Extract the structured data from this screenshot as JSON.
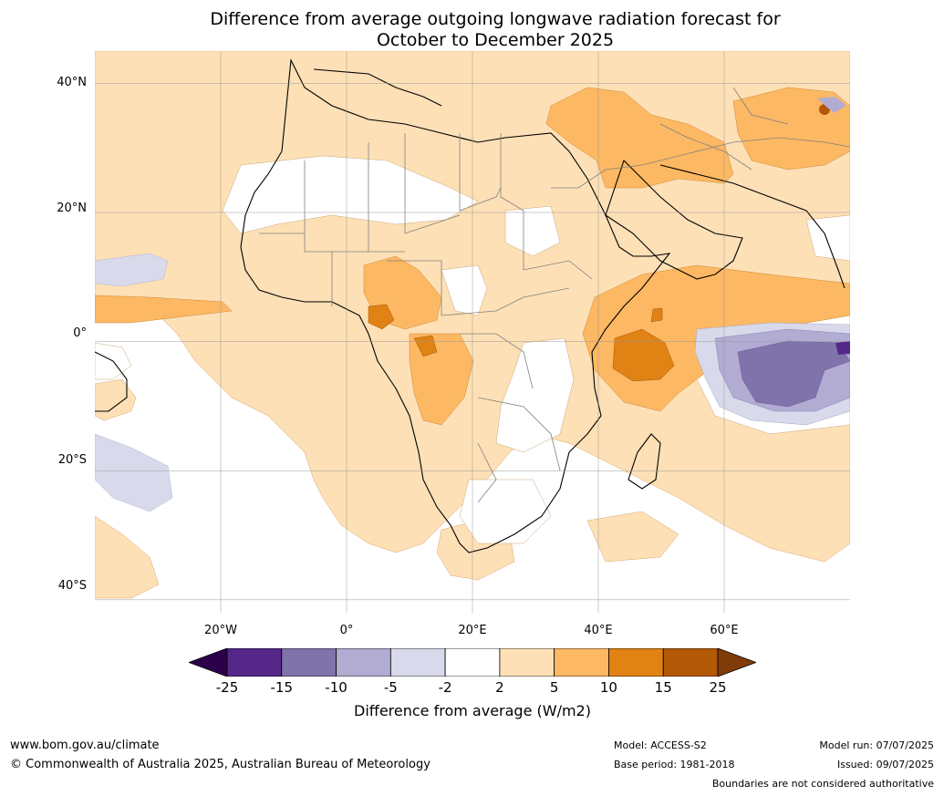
{
  "title": {
    "line1": "Difference from average outgoing longwave radiation forecast for",
    "line2": "October to December 2025"
  },
  "map": {
    "lat_labels": [
      "40°N",
      "20°N",
      "0°",
      "20°S",
      "40°S"
    ],
    "lon_labels": [
      "20°W",
      "0°",
      "20°E",
      "40°E",
      "60°E"
    ],
    "extent": {
      "lon": [
        -40,
        80
      ],
      "lat": [
        -42,
        45
      ]
    }
  },
  "colorbar": {
    "ticks": [
      "-25",
      "-15",
      "-10",
      "-5",
      "-2",
      "2",
      "5",
      "10",
      "15",
      "25"
    ],
    "colors": [
      "#2d004b",
      "#542788",
      "#8073ac",
      "#b2abd2",
      "#d8daeb",
      "#ffffff",
      "#fee0b6",
      "#fdb863",
      "#e08214",
      "#b35806",
      "#7f3b08"
    ],
    "label": "Difference from average (W/m2)"
  },
  "footer": {
    "website": "www.bom.gov.au/climate",
    "copyright": "© Commonwealth of Australia 2025, Australian Bureau of Meteorology",
    "model": "Model: ACCESS-S2",
    "base_period": "Base period: 1981-2018",
    "model_run": "Model run: 07/07/2025",
    "issued": "Issued: 09/07/2025",
    "boundaries_note": "Boundaries are not considered authoritative"
  }
}
